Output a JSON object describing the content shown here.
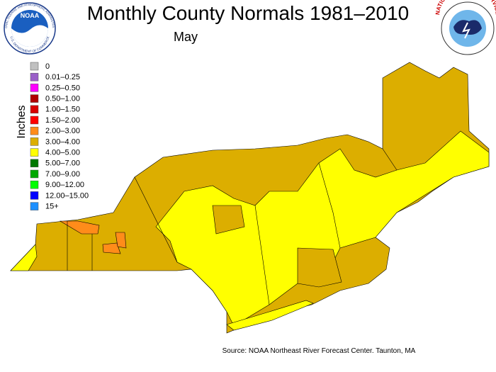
{
  "header": {
    "title": "Monthly County Normals 1981–2010",
    "subtitle": "May"
  },
  "logos": {
    "noaa": {
      "label": "NOAA",
      "ring_top": "NATIONAL OCEANIC AND ATMOSPHERIC ADMINISTRATION",
      "ring_bottom": "U.S. DEPARTMENT OF COMMERCE"
    },
    "nws": {
      "label": "NATIONAL WEATHER SERVICE"
    }
  },
  "legend": {
    "title": "Inches",
    "items": [
      {
        "label": "0",
        "color": "#c0c0c0"
      },
      {
        "label": "0.01–0.25",
        "color": "#9a5fc8"
      },
      {
        "label": "0.25–0.50",
        "color": "#ff00ff"
      },
      {
        "label": "0.50–1.00",
        "color": "#b00000"
      },
      {
        "label": "1.00–1.50",
        "color": "#d80000"
      },
      {
        "label": "1.50–2.00",
        "color": "#ff0000"
      },
      {
        "label": "2.00–3.00",
        "color": "#ff8c1a"
      },
      {
        "label": "3.00–4.00",
        "color": "#dcae00"
      },
      {
        "label": "4.00–5.00",
        "color": "#ffff00"
      },
      {
        "label": "5.00–7.00",
        "color": "#007800"
      },
      {
        "label": "7.00–9.00",
        "color": "#00a800"
      },
      {
        "label": "9.00–12.00",
        "color": "#00ff00"
      },
      {
        "label": "12.00–15.00",
        "color": "#0000ff"
      },
      {
        "label": "15+",
        "color": "#1e90ff"
      }
    ]
  },
  "footer": {
    "source": "Source: NOAA Northeast River Forecast Center. Taunton, MA"
  }
}
